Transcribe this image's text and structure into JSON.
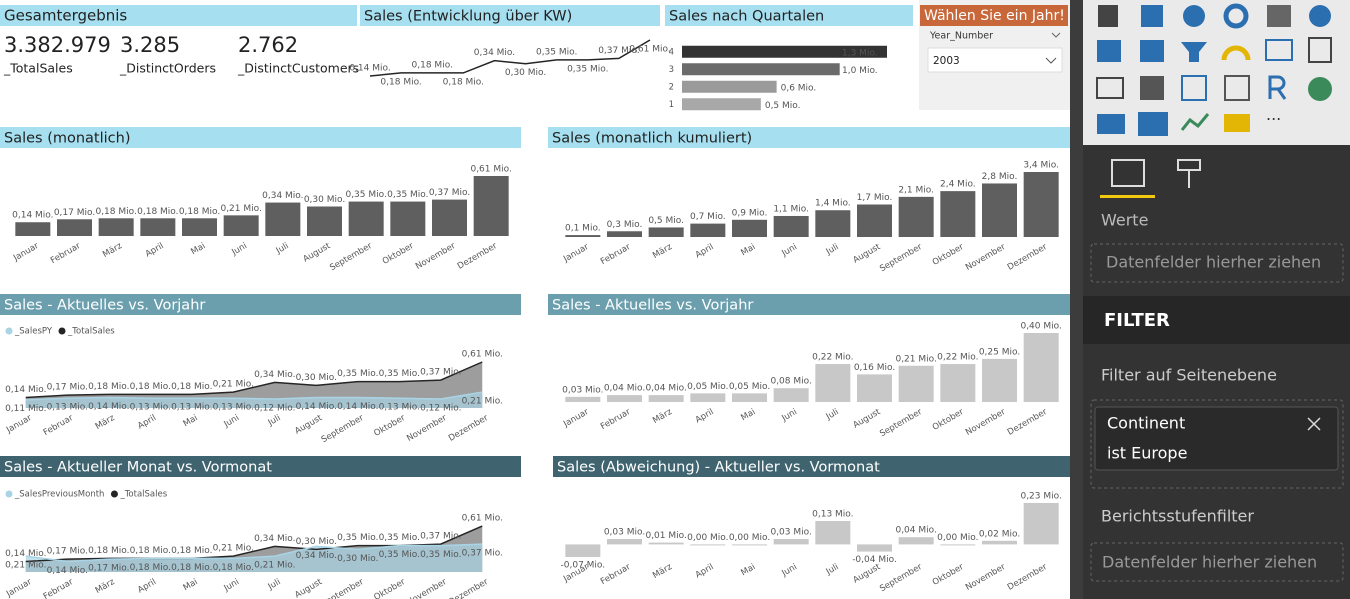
{
  "kpi_card": {
    "title": "Gesamtergebnis",
    "items": [
      {
        "value": "3.382.979",
        "label": "_TotalSales"
      },
      {
        "value": "3.285",
        "label": "_DistinctOrders"
      },
      {
        "value": "2.762",
        "label": "_DistinctCustomers"
      }
    ]
  },
  "slicer": {
    "title": "Wählen Sie ein Jahr!",
    "field": "Year_Number",
    "selected": "2003"
  },
  "chart_data": [
    {
      "type": "line",
      "title": "Sales (Entwicklung über KW)",
      "values": [
        0.14,
        0.18,
        0.18,
        0.18,
        0.34,
        0.3,
        0.35,
        0.35,
        0.37,
        0.61
      ],
      "value_labels": [
        "0,14 Mio.",
        "0,18 Mio.",
        "0,18 Mio.",
        "0,18 Mio.",
        "0,34 Mio.",
        "0,30 Mio.",
        "0,35 Mio.",
        "0,35 Mio.",
        "0,37 Mio.",
        "0,61 Mio."
      ],
      "color": "#252525"
    },
    {
      "type": "hbar",
      "title": "Sales nach Quartalen",
      "categories": [
        "4",
        "3",
        "2",
        "1"
      ],
      "values": [
        1.3,
        1.0,
        0.6,
        0.5
      ],
      "value_labels": [
        "1,3 Mio.",
        "1,0 Mio.",
        "0,6 Mio.",
        "0,5 Mio."
      ],
      "colors": [
        "#333333",
        "#6b6b6b",
        "#9a9a9a",
        "#a8a8a8"
      ]
    },
    {
      "type": "bar",
      "title": "Sales (monatlich)",
      "categories": [
        "Januar",
        "Februar",
        "März",
        "April",
        "Mai",
        "Juni",
        "Juli",
        "August",
        "September",
        "Oktober",
        "November",
        "Dezember"
      ],
      "values": [
        0.14,
        0.17,
        0.18,
        0.18,
        0.18,
        0.21,
        0.34,
        0.3,
        0.35,
        0.35,
        0.37,
        0.61
      ],
      "value_labels": [
        "0,14 Mio.",
        "0,17 Mio.",
        "0,18 Mio.",
        "0,18 Mio.",
        "0,18 Mio.",
        "0,21 Mio.",
        "0,34 Mio.",
        "0,30 Mio.",
        "0,35 Mio.",
        "0,35 Mio.",
        "0,37 Mio.",
        "0,61 Mio."
      ],
      "color": "#5f5f5f"
    },
    {
      "type": "bar",
      "title": "Sales (monatlich kumuliert)",
      "categories": [
        "Januar",
        "Februar",
        "März",
        "April",
        "Mai",
        "Juni",
        "Juli",
        "August",
        "September",
        "Oktober",
        "November",
        "Dezember"
      ],
      "values": [
        0.1,
        0.3,
        0.5,
        0.7,
        0.9,
        1.1,
        1.4,
        1.7,
        2.1,
        2.4,
        2.8,
        3.4
      ],
      "value_labels": [
        "0,1 Mio.",
        "0,3 Mio.",
        "0,5 Mio.",
        "0,7 Mio.",
        "0,9 Mio.",
        "1,1 Mio.",
        "1,4 Mio.",
        "1,7 Mio.",
        "2,1 Mio.",
        "2,4 Mio.",
        "2,8 Mio.",
        "3,4 Mio."
      ],
      "color": "#5f5f5f"
    },
    {
      "type": "area",
      "title": "Sales - Aktuelles vs. Vorjahr",
      "categories": [
        "Januar",
        "Februar",
        "März",
        "April",
        "Mai",
        "Juni",
        "Juli",
        "August",
        "September",
        "Oktober",
        "November",
        "Dezember"
      ],
      "series": [
        {
          "name": "_SalesPY",
          "color": "#a9d4e6",
          "values": [
            0.11,
            0.13,
            0.14,
            0.13,
            0.13,
            0.13,
            0.12,
            0.14,
            0.14,
            0.13,
            0.12,
            0.21
          ],
          "value_labels": [
            "0,11 Mio.",
            "0,13 Mio.",
            "0,14 Mio.",
            "0,13 Mio.",
            "0,13 Mio.",
            "0,13 Mio.",
            "0,12 Mio.",
            "0,14 Mio.",
            "0,14 Mio.",
            "0,13 Mio.",
            "0,12 Mio.",
            "0,21 Mio."
          ]
        },
        {
          "name": "_TotalSales",
          "color": "#252525",
          "values": [
            0.14,
            0.17,
            0.18,
            0.18,
            0.18,
            0.21,
            0.34,
            0.3,
            0.35,
            0.35,
            0.37,
            0.61
          ],
          "value_labels": [
            "0,14 Mio.",
            "0,17 Mio.",
            "0,18 Mio.",
            "0,18 Mio.",
            "0,18 Mio.",
            "0,21 Mio.",
            "0,34 Mio.",
            "0,30 Mio.",
            "0,35 Mio.",
            "0,35 Mio.",
            "0,37 Mio.",
            "0,61 Mio."
          ]
        }
      ]
    },
    {
      "type": "bar",
      "title": "Sales - Aktuelles vs. Vorjahr",
      "categories": [
        "Januar",
        "Februar",
        "März",
        "April",
        "Mai",
        "Juni",
        "Juli",
        "August",
        "September",
        "Oktober",
        "November",
        "Dezember"
      ],
      "values": [
        0.03,
        0.04,
        0.04,
        0.05,
        0.05,
        0.08,
        0.22,
        0.16,
        0.21,
        0.22,
        0.25,
        0.4
      ],
      "value_labels": [
        "0,03 Mio.",
        "0,04 Mio.",
        "0,04 Mio.",
        "0,05 Mio.",
        "0,05 Mio.",
        "0,08 Mio.",
        "0,22 Mio.",
        "0,16 Mio.",
        "0,21 Mio.",
        "0,22 Mio.",
        "0,25 Mio.",
        "0,40 Mio."
      ],
      "color": "#c8c8c8"
    },
    {
      "type": "area",
      "title": "Sales - Aktueller Monat vs. Vormonat",
      "categories": [
        "Januar",
        "Februar",
        "März",
        "April",
        "Mai",
        "Juni",
        "Juli",
        "August",
        "September",
        "Oktober",
        "November",
        "Dezember"
      ],
      "series": [
        {
          "name": "_SalesPreviousMonth",
          "color": "#a9d4e6",
          "values": [
            0.21,
            0.14,
            0.17,
            0.18,
            0.18,
            0.18,
            0.21,
            0.34,
            0.3,
            0.35,
            0.35,
            0.37
          ],
          "value_labels": [
            "0,21 Mio.",
            "0,14 Mio.",
            "0,17 Mio.",
            "0,18 Mio.",
            "0,18 Mio.",
            "0,18 Mio.",
            "0,21 Mio.",
            "0,34 Mio.",
            "0,30 Mio.",
            "0,35 Mio.",
            "0,35 Mio.",
            "0,37 Mio."
          ]
        },
        {
          "name": "_TotalSales",
          "color": "#252525",
          "values": [
            0.14,
            0.17,
            0.18,
            0.18,
            0.18,
            0.21,
            0.34,
            0.3,
            0.35,
            0.35,
            0.37,
            0.61
          ],
          "value_labels": [
            "0,14 Mio.",
            "0,17 Mio.",
            "0,18 Mio.",
            "0,18 Mio.",
            "0,18 Mio.",
            "0,21 Mio.",
            "0,34 Mio.",
            "0,30 Mio.",
            "0,35 Mio.",
            "0,35 Mio.",
            "0,37 Mio.",
            "0,61 Mio."
          ]
        }
      ]
    },
    {
      "type": "bar",
      "title": "Sales (Abweichung) - Aktueller vs. Vormonat",
      "categories": [
        "Januar",
        "Februar",
        "März",
        "April",
        "Mai",
        "Juni",
        "Juli",
        "August",
        "September",
        "Oktober",
        "November",
        "Dezember"
      ],
      "values": [
        -0.07,
        0.03,
        0.01,
        0.0,
        0.0,
        0.03,
        0.13,
        -0.04,
        0.04,
        0.0,
        0.02,
        0.23
      ],
      "value_labels": [
        "-0,07 Mio.",
        "0,03 Mio.",
        "0,01 Mio.",
        "0,00 Mio.",
        "0,00 Mio.",
        "0,03 Mio.",
        "0,13 Mio.",
        "-0,04 Mio.",
        "0,04 Mio.",
        "0,00 Mio.",
        "0,02 Mio.",
        "0,23 Mio."
      ],
      "color": "#c8c8c8"
    }
  ],
  "panel": {
    "section": "Werte",
    "drop_hint": "Datenfelder hierher ziehen",
    "filter_header": "FILTER",
    "page_filters": "Filter auf Seitenebene",
    "filter": {
      "field": "Continent",
      "condition": "ist Europe"
    },
    "report_filters": "Berichtsstufenfilter",
    "report_drop_hint": "Datenfelder hierher ziehen"
  }
}
